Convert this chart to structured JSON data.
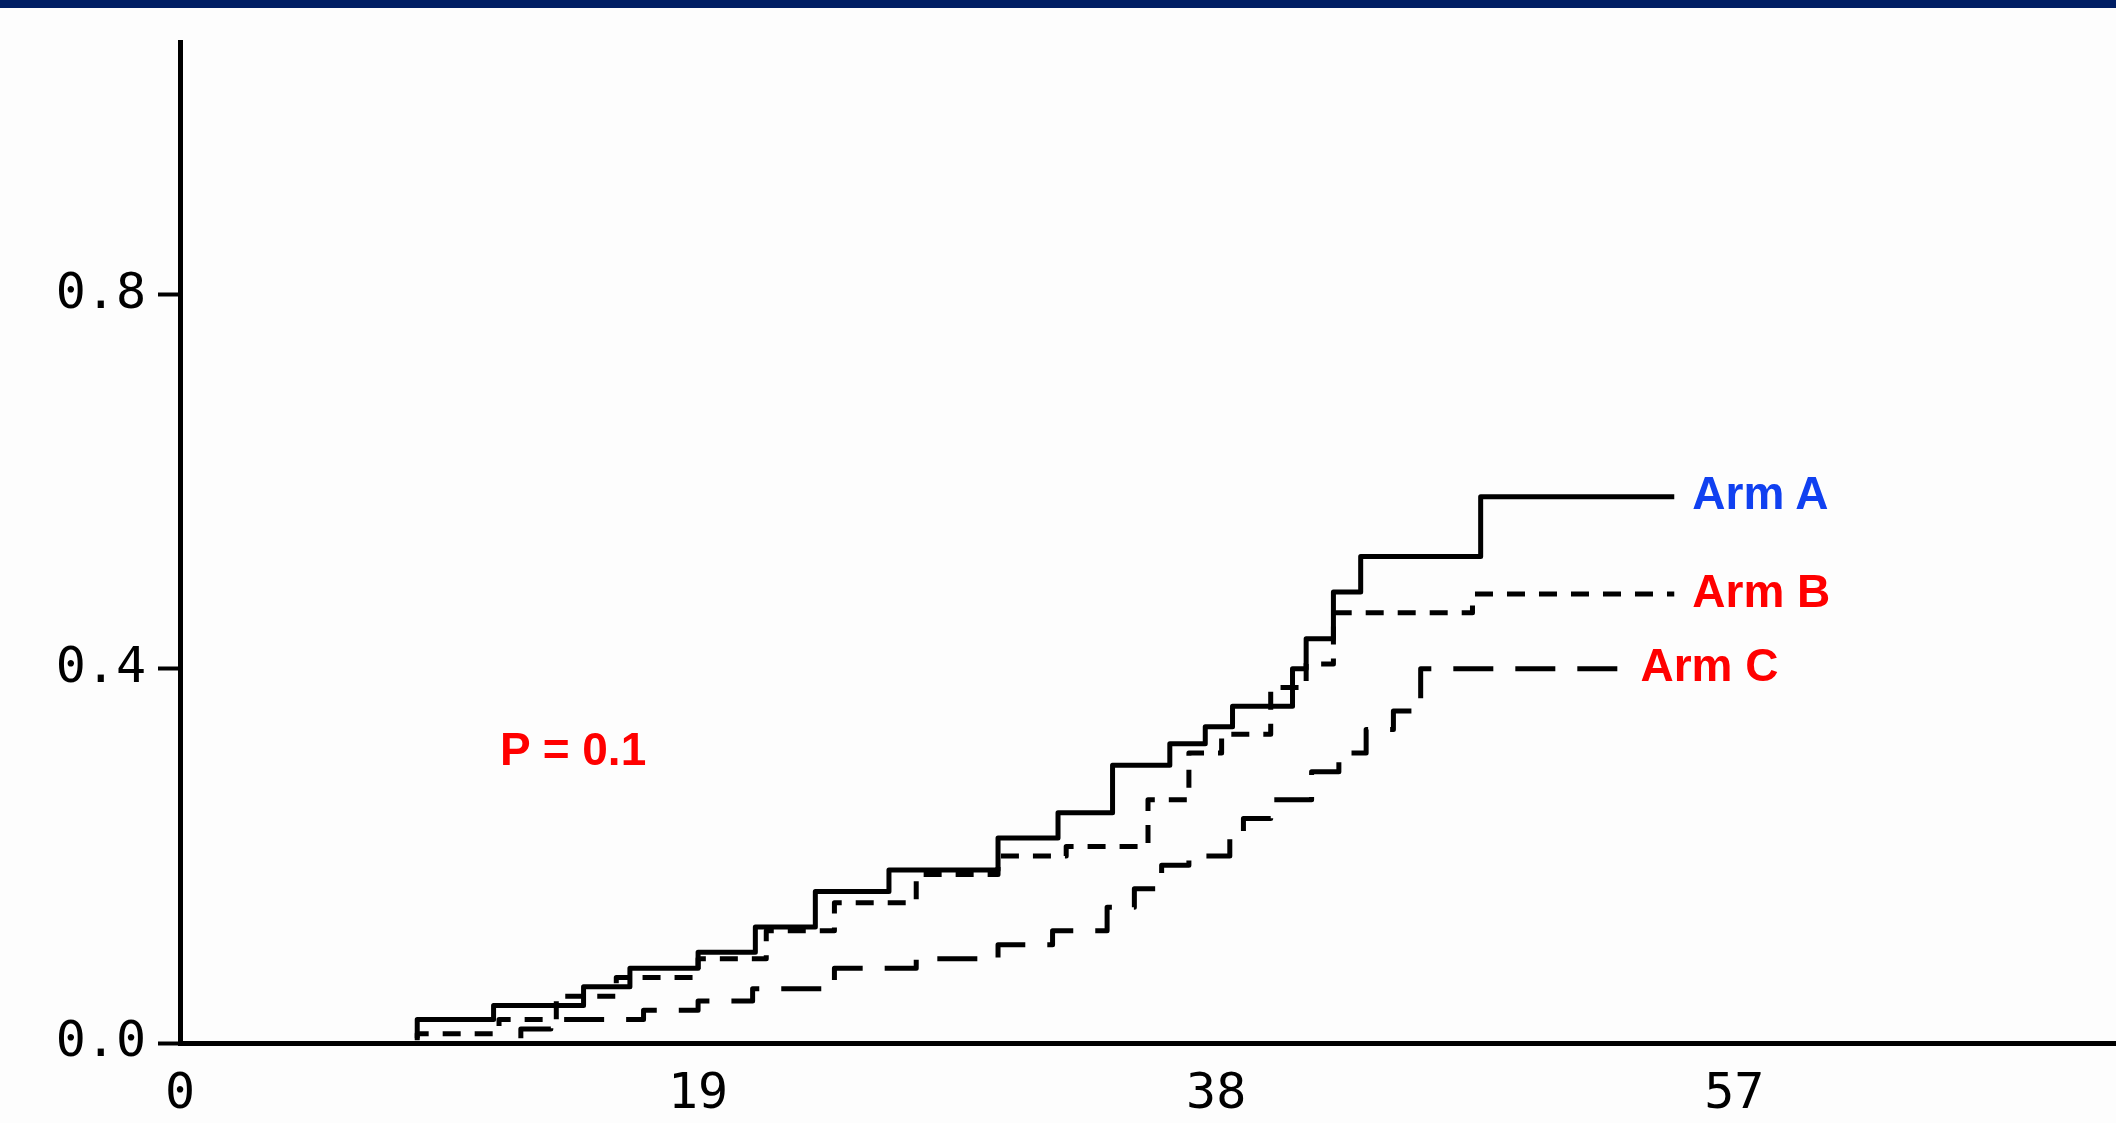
{
  "chart_data": {
    "type": "step",
    "xlim": [
      0,
      71
    ],
    "xticks": [
      0,
      19,
      38,
      57
    ],
    "ylim": [
      0,
      1.07
    ],
    "yticks": [
      {
        "value": 0,
        "label": "0.0"
      },
      {
        "value": 0.4,
        "label": "0.4"
      },
      {
        "value": 0.8,
        "label": "0.8"
      }
    ],
    "grid": false,
    "legend": false,
    "marker": "none",
    "annotations": [
      "P = 0.1"
    ],
    "series": [
      {
        "name": "Arm A",
        "color": "#000000",
        "line_style": "solid",
        "x": [
          8.7,
          11.5,
          14.8,
          16.5,
          19,
          21.1,
          23.3,
          26,
          30,
          32.2,
          34.2,
          36.3,
          37.6,
          38.6,
          40.8,
          41.3,
          42.3,
          43.3,
          47.7,
          49.9,
          54.8
        ],
        "values": [
          0.005,
          0.025,
          0.04,
          0.06,
          0.08,
          0.097,
          0.124,
          0.162,
          0.185,
          0.219,
          0.246,
          0.297,
          0.32,
          0.338,
          0.36,
          0.4,
          0.432,
          0.482,
          0.52,
          0.584,
          0.584
        ]
      },
      {
        "name": "Arm B",
        "color": "#000000",
        "line_style": "dashed",
        "x": [
          8.7,
          11.7,
          13.8,
          16,
          19,
          21.5,
          24,
          27,
          30,
          32.5,
          35.5,
          37,
          38.2,
          40,
          41.3,
          42.3,
          47.4,
          53.3,
          54.8
        ],
        "values": [
          0.003,
          0.01,
          0.025,
          0.05,
          0.07,
          0.09,
          0.12,
          0.15,
          0.18,
          0.2,
          0.21,
          0.26,
          0.31,
          0.33,
          0.38,
          0.405,
          0.46,
          0.48,
          0.48
        ]
      },
      {
        "name": "Arm C",
        "color": "#000000",
        "line_style": "longdash",
        "x": [
          12.5,
          13.6,
          17,
          19,
          21,
          24,
          27,
          30,
          32,
          34,
          35,
          36,
          37,
          38.5,
          39,
          40,
          41.5,
          42.5,
          43.5,
          44.5,
          45.5,
          51.3,
          52.9
        ],
        "values": [
          0.005,
          0.015,
          0.025,
          0.035,
          0.045,
          0.058,
          0.08,
          0.09,
          0.105,
          0.12,
          0.145,
          0.165,
          0.19,
          0.2,
          0.22,
          0.24,
          0.26,
          0.29,
          0.31,
          0.335,
          0.355,
          0.4,
          0.4
        ]
      }
    ]
  }
}
